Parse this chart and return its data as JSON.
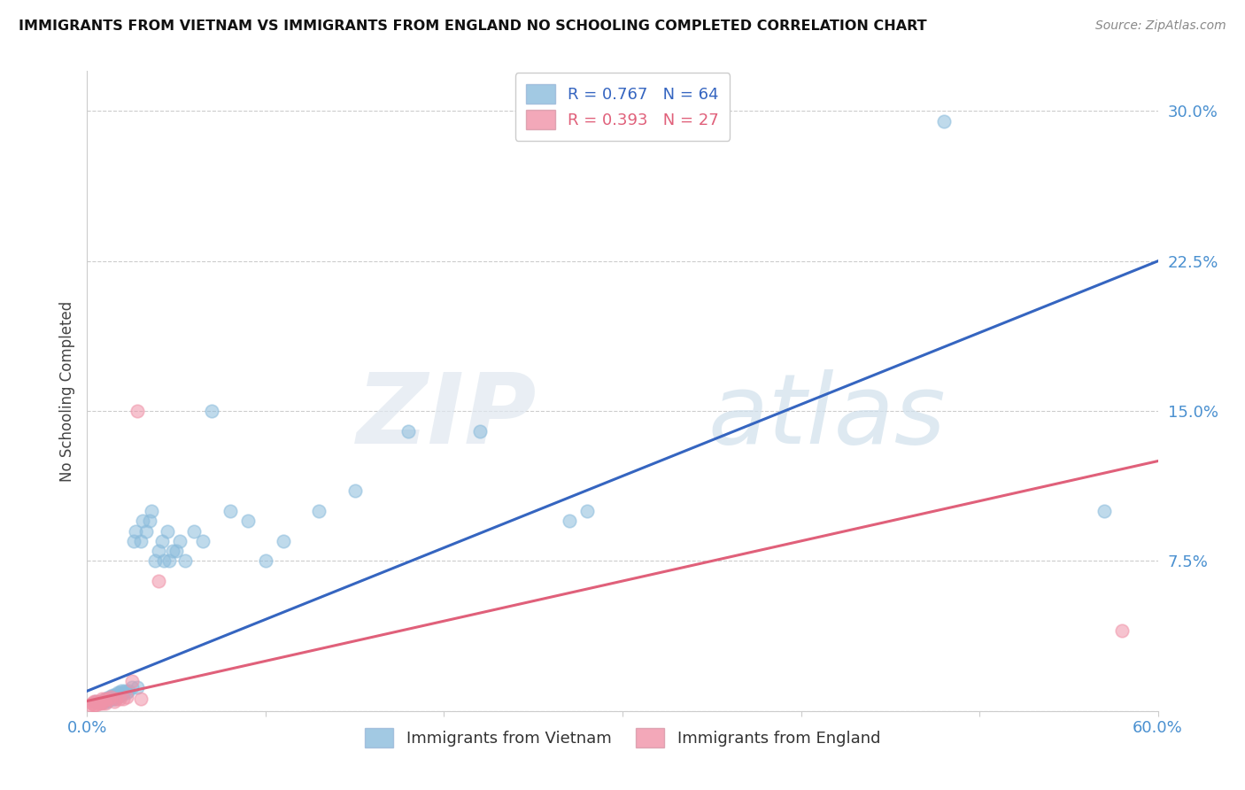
{
  "title": "IMMIGRANTS FROM VIETNAM VS IMMIGRANTS FROM ENGLAND NO SCHOOLING COMPLETED CORRELATION CHART",
  "source": "Source: ZipAtlas.com",
  "ylabel": "No Schooling Completed",
  "xlim": [
    0.0,
    0.6
  ],
  "ylim": [
    0.0,
    0.32
  ],
  "xticks": [
    0.0,
    0.1,
    0.2,
    0.3,
    0.4,
    0.5,
    0.6
  ],
  "yticks": [
    0.0,
    0.075,
    0.15,
    0.225,
    0.3
  ],
  "ytick_labels": [
    "",
    "7.5%",
    "15.0%",
    "22.5%",
    "30.0%"
  ],
  "xtick_labels": [
    "0.0%",
    "",
    "",
    "",
    "",
    "",
    "60.0%"
  ],
  "legend_footer": [
    "Immigrants from Vietnam",
    "Immigrants from England"
  ],
  "vietnam_color": "#8bbcdc",
  "england_color": "#f093a8",
  "vietnam_line_color": "#3565c0",
  "england_line_color": "#e0607a",
  "background_color": "#ffffff",
  "vietnam_scatter_x": [
    0.005,
    0.007,
    0.008,
    0.009,
    0.01,
    0.01,
    0.011,
    0.011,
    0.012,
    0.012,
    0.013,
    0.013,
    0.014,
    0.014,
    0.014,
    0.015,
    0.015,
    0.015,
    0.016,
    0.016,
    0.017,
    0.017,
    0.018,
    0.018,
    0.019,
    0.019,
    0.02,
    0.021,
    0.022,
    0.023,
    0.025,
    0.026,
    0.027,
    0.028,
    0.03,
    0.031,
    0.033,
    0.035,
    0.036,
    0.038,
    0.04,
    0.042,
    0.043,
    0.045,
    0.046,
    0.048,
    0.05,
    0.052,
    0.055,
    0.06,
    0.065,
    0.07,
    0.08,
    0.09,
    0.1,
    0.11,
    0.13,
    0.15,
    0.18,
    0.22,
    0.27,
    0.28,
    0.48,
    0.57
  ],
  "vietnam_scatter_y": [
    0.005,
    0.005,
    0.005,
    0.005,
    0.005,
    0.006,
    0.005,
    0.006,
    0.006,
    0.007,
    0.006,
    0.007,
    0.006,
    0.007,
    0.008,
    0.006,
    0.007,
    0.008,
    0.007,
    0.008,
    0.007,
    0.009,
    0.008,
    0.009,
    0.008,
    0.01,
    0.009,
    0.01,
    0.009,
    0.01,
    0.012,
    0.085,
    0.09,
    0.012,
    0.085,
    0.095,
    0.09,
    0.095,
    0.1,
    0.075,
    0.08,
    0.085,
    0.075,
    0.09,
    0.075,
    0.08,
    0.08,
    0.085,
    0.075,
    0.09,
    0.085,
    0.15,
    0.1,
    0.095,
    0.075,
    0.085,
    0.1,
    0.11,
    0.14,
    0.14,
    0.095,
    0.1,
    0.295,
    0.1
  ],
  "england_scatter_x": [
    0.002,
    0.003,
    0.004,
    0.004,
    0.005,
    0.005,
    0.006,
    0.007,
    0.007,
    0.008,
    0.008,
    0.009,
    0.01,
    0.01,
    0.012,
    0.013,
    0.015,
    0.016,
    0.018,
    0.02,
    0.022,
    0.025,
    0.028,
    0.03,
    0.04,
    0.58
  ],
  "england_scatter_y": [
    0.003,
    0.004,
    0.003,
    0.005,
    0.003,
    0.005,
    0.004,
    0.004,
    0.005,
    0.004,
    0.006,
    0.005,
    0.004,
    0.006,
    0.006,
    0.007,
    0.005,
    0.006,
    0.006,
    0.006,
    0.007,
    0.015,
    0.15,
    0.006,
    0.065,
    0.04
  ],
  "vietnam_line_x0": 0.0,
  "vietnam_line_y0": 0.01,
  "vietnam_line_x1": 0.6,
  "vietnam_line_y1": 0.225,
  "england_line_x0": 0.0,
  "england_line_y0": 0.005,
  "england_line_x1": 0.6,
  "england_line_y1": 0.125
}
